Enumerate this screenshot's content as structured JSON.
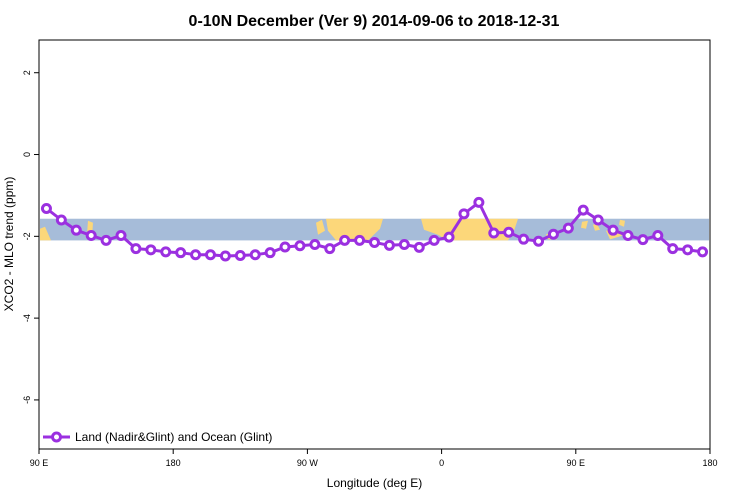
{
  "chart_data": {
    "type": "line",
    "title": "0-10N December (Ver 9)   2014-09-06 to 2018-12-31",
    "xlabel": "Longitude (deg E)",
    "ylabel": "XCO2 - MLO trend (ppm)",
    "xlim": [
      90,
      540
    ],
    "ylim": [
      -7.2,
      2.8
    ],
    "x_ticks": [
      {
        "value": 90,
        "label": "90 E"
      },
      {
        "value": 180,
        "label": "180"
      },
      {
        "value": 270,
        "label": "90 W"
      },
      {
        "value": 360,
        "label": "0"
      },
      {
        "value": 450,
        "label": "90 E"
      },
      {
        "value": 540,
        "label": "180"
      }
    ],
    "y_ticks": [
      {
        "value": 2,
        "label": "2"
      },
      {
        "value": 0,
        "label": "0"
      },
      {
        "value": -2,
        "label": "-2"
      },
      {
        "value": -4,
        "label": "-4"
      },
      {
        "value": -6,
        "label": "-6"
      }
    ],
    "grid": false,
    "legend_position": "bottom-left",
    "colors": {
      "series": "#9b30e0",
      "ocean_band": "#a6bcd9",
      "land_band": "#fcd77a"
    },
    "map_band": {
      "y_range": [
        -2.1,
        -1.57
      ]
    },
    "series": [
      {
        "name": "Land (Nadir&Glint) and Ocean (Glint)",
        "x": [
          95,
          105,
          115,
          125,
          135,
          145,
          155,
          165,
          175,
          185,
          195,
          205,
          215,
          225,
          235,
          245,
          255,
          265,
          275,
          285,
          295,
          305,
          315,
          325,
          335,
          345,
          355,
          365,
          375,
          385,
          395,
          405,
          415,
          425,
          435,
          445,
          455,
          465,
          475,
          485,
          495,
          505,
          515,
          525,
          535
        ],
        "y": [
          -1.32,
          -1.6,
          -1.85,
          -1.98,
          -2.1,
          -1.98,
          -2.3,
          -2.33,
          -2.38,
          -2.4,
          -2.45,
          -2.45,
          -2.48,
          -2.47,
          -2.45,
          -2.4,
          -2.26,
          -2.23,
          -2.2,
          -2.3,
          -2.1,
          -2.1,
          -2.15,
          -2.22,
          -2.2,
          -2.27,
          -2.1,
          -2.02,
          -1.45,
          -1.17,
          -1.92,
          -1.9,
          -2.07,
          -2.12,
          -1.95,
          -1.8,
          -1.36,
          -1.6,
          -1.85,
          -1.98,
          -2.08,
          -1.98,
          -2.3,
          -2.33,
          -2.38
        ]
      }
    ]
  }
}
